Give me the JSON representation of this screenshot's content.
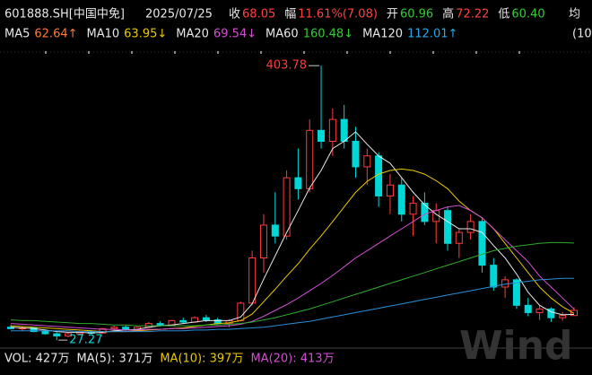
{
  "chart_data": {
    "type": "candlestick",
    "title": "601888.SH[中国中免]",
    "date": "2025/07/25",
    "quote": [
      {
        "label": "收",
        "value": "68.05",
        "color": "#ff4040"
      },
      {
        "label": "幅",
        "value": "11.61%(7.08)",
        "color": "#ff4040"
      },
      {
        "label": "开",
        "value": "60.96",
        "color": "#33cc33"
      },
      {
        "label": "高",
        "value": "72.22",
        "color": "#ff4040"
      },
      {
        "label": "低",
        "value": "60.40",
        "color": "#33cc33"
      }
    ],
    "avg_label": "均",
    "overflow_text": "(10",
    "up_color": "#ff3b3b",
    "down_color": "#00d8d8",
    "ylim": [
      20,
      420
    ],
    "open": [
      45,
      43,
      44,
      39,
      36,
      33,
      36,
      38,
      37,
      43,
      45,
      42,
      45,
      50,
      48,
      54,
      52,
      58,
      55,
      50,
      54,
      78,
      140,
      185,
      170,
      250,
      235,
      315,
      300,
      330,
      300,
      265,
      280,
      225,
      240,
      200,
      215,
      190,
      205,
      160,
      175,
      190,
      130,
      100,
      110,
      75,
      65,
      70,
      58,
      60.96
    ],
    "high": [
      48,
      46,
      45,
      42,
      38,
      37,
      40,
      41,
      44,
      47,
      48,
      46,
      52,
      53,
      55,
      58,
      60,
      62,
      58,
      56,
      80,
      150,
      200,
      230,
      260,
      290,
      330,
      403.78,
      345,
      350,
      320,
      290,
      285,
      255,
      250,
      225,
      230,
      215,
      210,
      180,
      200,
      195,
      140,
      115,
      112,
      85,
      75,
      72,
      66,
      72.22
    ],
    "low": [
      42,
      40,
      38,
      35,
      27.27,
      31,
      34,
      36,
      36,
      41,
      40,
      40,
      44,
      46,
      47,
      50,
      51,
      52,
      48,
      45,
      53,
      75,
      120,
      160,
      165,
      220,
      230,
      290,
      280,
      290,
      250,
      240,
      210,
      200,
      190,
      170,
      185,
      160,
      150,
      140,
      165,
      120,
      95,
      85,
      70,
      60,
      55,
      52,
      54,
      60.4
    ],
    "close": [
      43,
      44,
      39,
      36,
      33,
      36,
      38,
      37,
      43,
      45,
      42,
      45,
      50,
      48,
      54,
      52,
      58,
      55,
      50,
      54,
      78,
      140,
      185,
      170,
      250,
      235,
      315,
      300,
      330,
      300,
      265,
      280,
      225,
      240,
      200,
      215,
      190,
      205,
      160,
      175,
      190,
      130,
      100,
      110,
      75,
      65,
      70,
      58,
      61,
      68.05
    ],
    "lines": [
      {
        "name": "MA5",
        "label": "62.64↑",
        "color": "#e8e8e8",
        "label_color": "#ff7a3a",
        "values": [
          45,
          44,
          43,
          41,
          39,
          38,
          38,
          37,
          38,
          40,
          41,
          42,
          45,
          47,
          48,
          50,
          52,
          54,
          54,
          54,
          59,
          77,
          111,
          143,
          175,
          205,
          236,
          260,
          290,
          300,
          313,
          296,
          280,
          270,
          250,
          230,
          213,
          200,
          190,
          180,
          180,
          175,
          157,
          140,
          118,
          93,
          75,
          66,
          62,
          62.64
        ]
      },
      {
        "name": "MA10",
        "label": "63.95↓",
        "color": "#e8c800",
        "label_color": "#e8c800",
        "values": [
          47,
          46,
          45,
          44,
          43,
          42,
          41,
          40,
          39,
          39,
          39,
          40,
          41,
          42,
          43,
          44,
          46,
          48,
          50,
          51,
          54,
          63,
          80,
          97,
          115,
          132,
          152,
          170,
          190,
          210,
          230,
          245,
          255,
          260,
          262,
          260,
          255,
          246,
          235,
          218,
          205,
          195,
          180,
          160,
          140,
          120,
          100,
          85,
          73,
          63.95
        ]
      },
      {
        "name": "MA20",
        "label": "69.54↓",
        "color": "#d24fd2",
        "label_color": "#d24fd2",
        "values": [
          50,
          49,
          48,
          47,
          46,
          45,
          44,
          43,
          42,
          42,
          41,
          41,
          42,
          42,
          43,
          43,
          44,
          45,
          46,
          47,
          49,
          53,
          60,
          68,
          76,
          85,
          95,
          105,
          116,
          128,
          140,
          150,
          160,
          170,
          180,
          190,
          200,
          205,
          210,
          212,
          205,
          195,
          180,
          165,
          150,
          135,
          115,
          100,
          85,
          69.54
        ]
      },
      {
        "name": "MA60",
        "label": "160.48↓",
        "color": "#2faa2f",
        "label_color": "#33cc33",
        "values": [
          55,
          54,
          54,
          53,
          52,
          51,
          50,
          50,
          49,
          48,
          48,
          47,
          47,
          47,
          47,
          47,
          47,
          48,
          48,
          49,
          50,
          52,
          55,
          58,
          62,
          66,
          70,
          75,
          80,
          85,
          90,
          95,
          100,
          105,
          110,
          115,
          120,
          125,
          130,
          135,
          140,
          145,
          150,
          153,
          156,
          158,
          160,
          161,
          161,
          160.48
        ]
      },
      {
        "name": "MA120",
        "label": "112.01↑",
        "color": "#2a8fd8",
        "label_color": "#2aa8e8",
        "values": [
          40,
          40,
          40,
          40,
          40,
          40,
          39,
          39,
          39,
          39,
          39,
          39,
          39,
          40,
          40,
          40,
          41,
          41,
          42,
          42,
          43,
          44,
          45,
          47,
          49,
          51,
          53,
          56,
          59,
          62,
          65,
          68,
          71,
          74,
          77,
          80,
          83,
          86,
          89,
          92,
          95,
          98,
          101,
          104,
          106,
          108,
          110,
          111,
          112,
          112.01
        ]
      }
    ],
    "volume": [
      {
        "text": "VOL: 427万",
        "color": "#e8e8e8"
      },
      {
        "text": "MA(5): 371万",
        "color": "#e8e8e8"
      },
      {
        "text": "MA(10): 397万",
        "color": "#e8c800"
      },
      {
        "text": "MA(20): 413万",
        "color": "#d24fd2"
      }
    ],
    "watermark": "Wind"
  }
}
